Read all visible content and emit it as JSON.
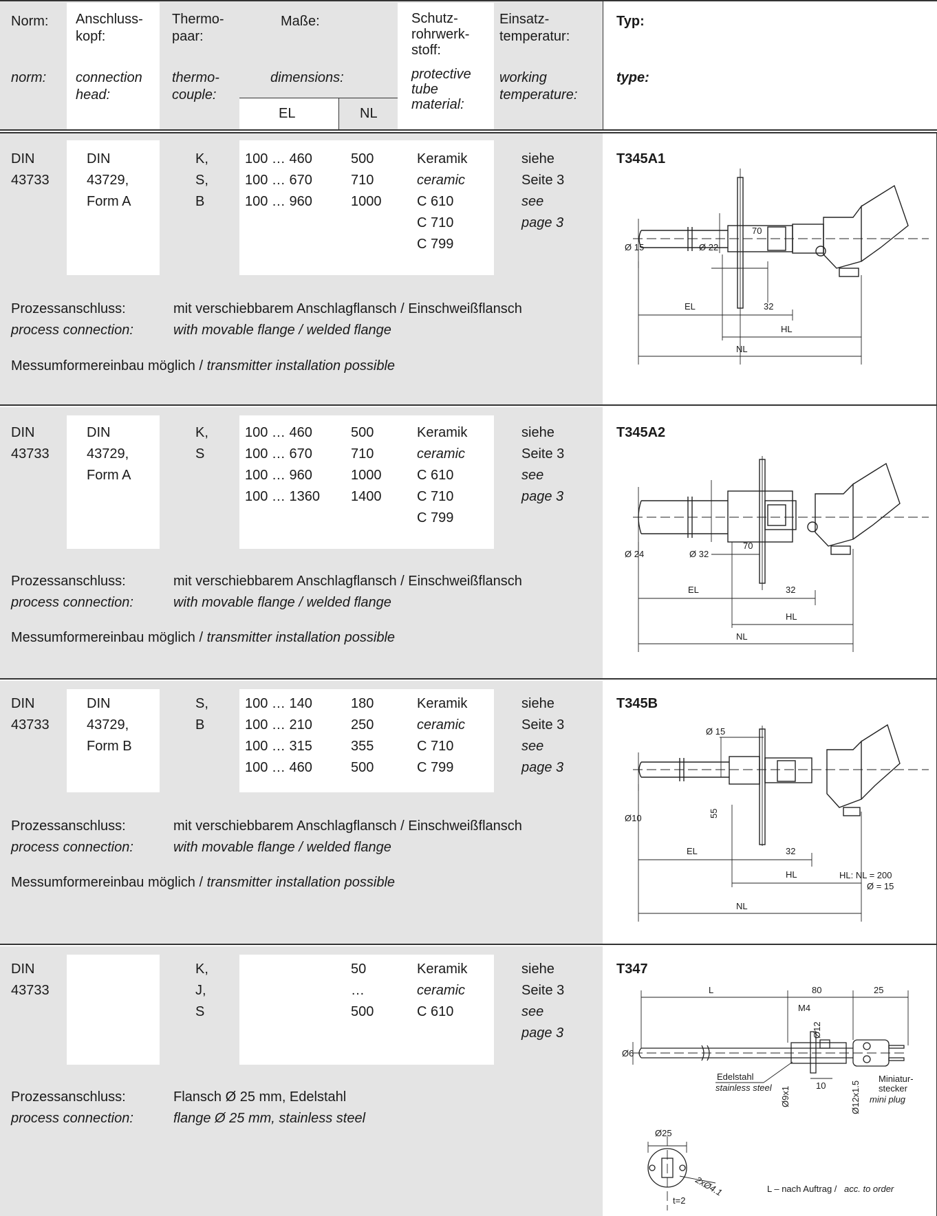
{
  "header": {
    "norm": {
      "de": "Norm:",
      "en": "norm:"
    },
    "connection_head": {
      "de": "Anschluss-\nkopf:",
      "en": "connection\nhead:"
    },
    "thermocouple": {
      "de": "Thermo-\npaar:",
      "en": "thermo-\ncouple:"
    },
    "dimensions": {
      "de": "Maße:",
      "en": "dimensions:",
      "el": "EL",
      "nl": "NL"
    },
    "tube_material": {
      "de": "Schutz-\nrohrwerk-\nstoff:",
      "en": "protective\ntube\nmaterial:"
    },
    "working_temp": {
      "de": "Einsatz-\ntemperatur:",
      "en": "working\ntemperature:"
    },
    "type": {
      "de": "Typ:",
      "en": "type:"
    }
  },
  "rows": [
    {
      "norm": "DIN\n43733",
      "head": "DIN\n43729,\nForm A",
      "thermocouple": "K,\nS,\nB",
      "el": "100 … 460\n100 … 670\n100 … 960",
      "nl": "500\n710\n1000",
      "material_de": "Keramik",
      "material_en": "ceramic",
      "material_codes": "C 610\nC 710\nC 799",
      "temp_de": "siehe\nSeite 3",
      "temp_en": "see\npage 3",
      "process_label_de": "Prozessanschluss:",
      "process_label_en": "process connection:",
      "process_de": "mit verschiebbarem Anschlagflansch / Einschweißflansch",
      "process_en": "with movable flange / welded flange",
      "transmitter_de": "Messumformereinbau möglich / ",
      "transmitter_en": "transmitter installation possible",
      "type": "T345A1",
      "drawing": {
        "dia_tube": "Ø 15",
        "dia_flange": "Ø 22",
        "h": "70",
        "el": "EL",
        "w": "32",
        "hl": "HL",
        "nl": "NL"
      }
    },
    {
      "norm": "DIN\n43733",
      "head": "DIN\n43729,\nForm A",
      "thermocouple": "K,\nS",
      "el": "100 … 460\n100 … 670\n100 … 960\n100 … 1360",
      "nl": "500\n710\n1000\n1400",
      "material_de": "Keramik",
      "material_en": "ceramic",
      "material_codes": "C 610\nC 710\nC 799",
      "temp_de": "siehe\nSeite 3",
      "temp_en": "see\npage 3",
      "process_label_de": "Prozessanschluss:",
      "process_label_en": "process connection:",
      "process_de": "mit verschiebbarem Anschlagflansch / Einschweißflansch",
      "process_en": "with movable flange / welded flange",
      "transmitter_de": "Messumformereinbau möglich / ",
      "transmitter_en": "transmitter installation possible",
      "type": "T345A2",
      "drawing": {
        "dia_tube": "Ø 24",
        "dia_flange": "Ø 32",
        "h": "70",
        "el": "EL",
        "w": "32",
        "hl": "HL",
        "nl": "NL"
      }
    },
    {
      "norm": "DIN\n43733",
      "head": "DIN\n43729,\nForm B",
      "thermocouple": "S,\nB",
      "el": "100 … 140\n100 … 210\n100 … 315\n100 … 460",
      "nl": "180\n250\n355\n500",
      "material_de": "Keramik",
      "material_en": "ceramic",
      "material_codes": "C 710\nC 799",
      "temp_de": "siehe\nSeite 3",
      "temp_en": "see\npage 3",
      "process_label_de": "Prozessanschluss:",
      "process_label_en": "process connection:",
      "process_de": "mit verschiebbarem Anschlagflansch / Einschweißflansch",
      "process_en": "with movable flange / welded flange",
      "transmitter_de": "Messumformereinbau möglich / ",
      "transmitter_en": "transmitter installation possible",
      "type": "T345B",
      "drawing": {
        "dia_tube": "Ø10",
        "dia_flange": "Ø 15",
        "h": "55",
        "el": "EL",
        "w": "32",
        "hl": "HL",
        "nl": "NL",
        "note1": "HL: NL = 200",
        "note2": "Ø = 15"
      }
    },
    {
      "norm": "DIN\n43733",
      "head": "",
      "thermocouple": "K,\nJ,\nS",
      "el": "",
      "nl": "50\n…\n500",
      "material_de": "Keramik",
      "material_en": "ceramic",
      "material_codes": "C 610",
      "temp_de": "siehe\nSeite 3",
      "temp_en": "see\npage 3",
      "process_label_de": "Prozessanschluss:",
      "process_label_en": "process connection:",
      "process_de": "Flansch Ø 25 mm, Edelstahl",
      "process_en": "flange Ø 25 mm, stainless steel",
      "type": "T347",
      "drawing": {
        "l": "L",
        "d80": "80",
        "d25": "25",
        "m4": "M4",
        "d12": "Ø12",
        "d6": "Ø6",
        "d9x1": "Ø9x1",
        "d10": "10",
        "d12x15": "Ø12x1.5",
        "steel_de": "Edelstahl",
        "steel_en": "stainless steel",
        "plug_de": "Miniatur-\nstecker",
        "plug_en": "mini plug",
        "flange_dia": "Ø25",
        "holes": "2xØ4.1",
        "t": "t=2",
        "order_de": "L – nach Auftrag / ",
        "order_en": "acc. to order"
      }
    }
  ]
}
